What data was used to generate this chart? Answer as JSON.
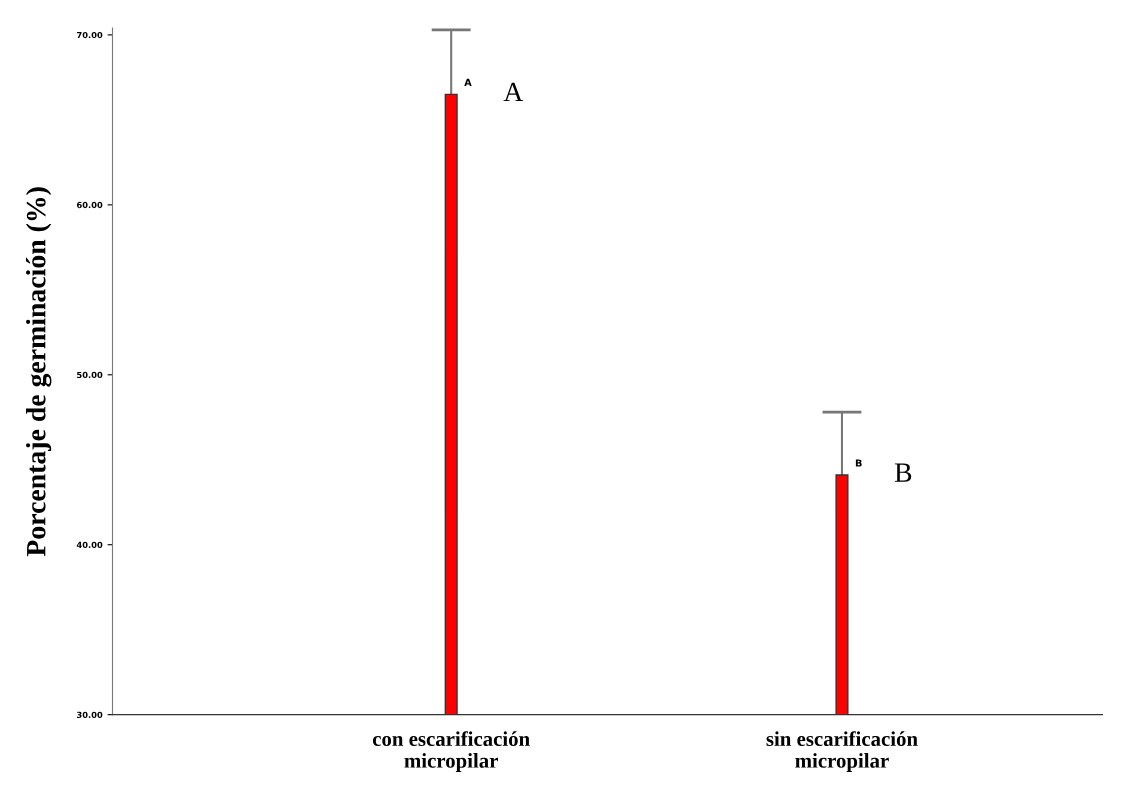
{
  "chart_data": {
    "type": "bar",
    "ylabel": "Porcentaje de germinación (%)",
    "categories": [
      "con escarificación\nmicropilar",
      "sin escarificación\nmicropilar"
    ],
    "values": [
      66.5,
      44.1
    ],
    "color": "#ff0000",
    "errors": [
      [
        66.5,
        70.3
      ],
      [
        44.1,
        47.8
      ]
    ],
    "ylim": [
      30,
      70.4
    ],
    "yticks": [
      {
        "value": 30,
        "label": "30.00"
      },
      {
        "value": 40,
        "label": "40.00"
      },
      {
        "value": 50,
        "label": "50.00"
      },
      {
        "value": 60,
        "label": "60.00"
      },
      {
        "value": 70,
        "label": "70.00"
      }
    ],
    "grid": false,
    "annotations": [
      {
        "text": "A",
        "x": "con escarificación\nmicropilar",
        "y": 66.5
      },
      {
        "text": "B",
        "x": "sin escarificación\nmicropilar",
        "y": 44.1
      },
      "A",
      "B"
    ]
  }
}
